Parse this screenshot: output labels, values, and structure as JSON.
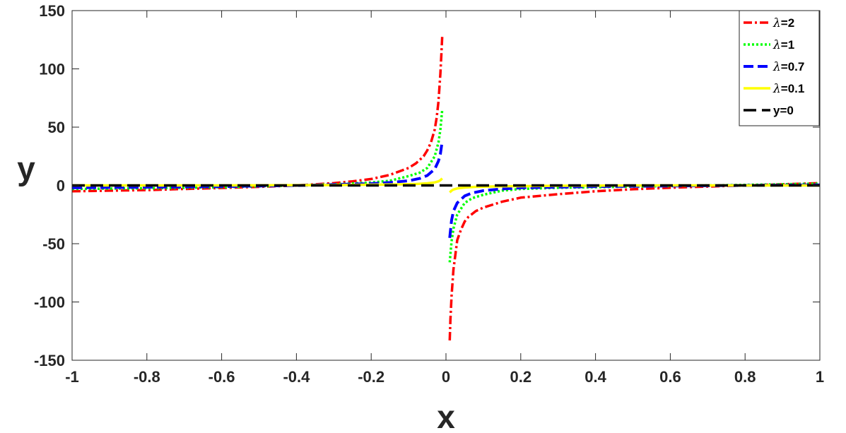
{
  "chart_data": {
    "type": "line",
    "xlabel": "x",
    "ylabel": "y",
    "xlim": [
      -1,
      1
    ],
    "ylim": [
      -150,
      150
    ],
    "x_ticks": [
      -1,
      -0.8,
      -0.6,
      -0.4,
      -0.2,
      0,
      0.2,
      0.4,
      0.6,
      0.8,
      1
    ],
    "x_tick_labels": [
      "-1",
      "-0.8",
      "-0.6",
      "-0.4",
      "-0.2",
      "0",
      "0.2",
      "0.4",
      "0.6",
      "0.8",
      "1"
    ],
    "y_ticks": [
      150,
      100,
      50,
      0,
      -50,
      -100,
      -150
    ],
    "y_tick_labels": [
      "150",
      "100",
      "50",
      "0",
      "-50",
      "-100",
      "-150"
    ],
    "grid": false,
    "legend_position": "top-right",
    "series": [
      {
        "name": "λ=2",
        "legend_symbol": "λ",
        "legend_rest": "=2",
        "color": "#ff0000",
        "dash": "dash-dot",
        "left": {
          "x": [
            -1,
            -0.9,
            -0.8,
            -0.7,
            -0.6,
            -0.5,
            -0.4,
            -0.35,
            -0.3,
            -0.25,
            -0.2,
            -0.15,
            -0.1,
            -0.08,
            -0.06,
            -0.05,
            -0.04,
            -0.03,
            -0.025,
            -0.02,
            -0.015,
            -0.012,
            -0.01
          ],
          "y": [
            -5,
            -4.5,
            -4,
            -3,
            -2.2,
            -1.2,
            0,
            1,
            2,
            3.5,
            5.5,
            9,
            15,
            19,
            25,
            30,
            37,
            48,
            58,
            72,
            96,
            115,
            128
          ]
        },
        "right": {
          "x": [
            0.01,
            0.012,
            0.015,
            0.02,
            0.025,
            0.03,
            0.04,
            0.05,
            0.06,
            0.08,
            0.1,
            0.15,
            0.2,
            0.3,
            0.4,
            0.5,
            0.6,
            0.7,
            0.8,
            0.9,
            1
          ],
          "y": [
            -133,
            -115,
            -95,
            -72,
            -60,
            -47,
            -38,
            -31,
            -27,
            -22,
            -19,
            -14,
            -10.5,
            -7.5,
            -5,
            -3.3,
            -2,
            -1,
            0,
            1,
            2
          ]
        }
      },
      {
        "name": "λ=1",
        "legend_symbol": "λ",
        "legend_rest": "=1",
        "color": "#00ff00",
        "dash": "dotted",
        "left": {
          "x": [
            -1,
            -0.8,
            -0.6,
            -0.4,
            -0.3,
            -0.2,
            -0.15,
            -0.1,
            -0.07,
            -0.05,
            -0.03,
            -0.02,
            -0.015,
            -0.01
          ],
          "y": [
            -3,
            -2.5,
            -1.5,
            0,
            1,
            2.5,
            4,
            8,
            11,
            15,
            25,
            37,
            48,
            65
          ]
        },
        "right": {
          "x": [
            0.01,
            0.015,
            0.02,
            0.03,
            0.05,
            0.07,
            0.1,
            0.15,
            0.2,
            0.3,
            0.4,
            0.6,
            0.8,
            1
          ],
          "y": [
            -66,
            -48,
            -37,
            -25,
            -15,
            -11,
            -8,
            -4.5,
            -3,
            -2,
            -1.5,
            -0.5,
            0.5,
            1.5
          ]
        }
      },
      {
        "name": "λ=0.7",
        "legend_symbol": "λ",
        "legend_rest": "=0.7",
        "color": "#0000ff",
        "dash": "dashed",
        "left": {
          "x": [
            -1,
            -0.8,
            -0.6,
            -0.4,
            -0.2,
            -0.15,
            -0.1,
            -0.07,
            -0.05,
            -0.03,
            -0.02,
            -0.015,
            -0.01
          ],
          "y": [
            -2,
            -1.5,
            -1,
            0,
            1.5,
            2.5,
            4,
            6,
            8.5,
            14,
            21,
            27,
            38
          ]
        },
        "right": {
          "x": [
            0.01,
            0.015,
            0.02,
            0.03,
            0.05,
            0.07,
            0.1,
            0.15,
            0.2,
            0.4,
            0.6,
            0.8,
            1
          ],
          "y": [
            -45,
            -30,
            -22,
            -15,
            -9,
            -6.5,
            -4.5,
            -3,
            -2,
            -1,
            -0.5,
            0,
            0.5
          ]
        }
      },
      {
        "name": "λ=0.1",
        "legend_symbol": "λ",
        "legend_rest": "=0.1",
        "color": "#ffff00",
        "dash": "solid",
        "left": {
          "x": [
            -1,
            -0.6,
            -0.3,
            -0.15,
            -0.08,
            -0.05,
            -0.03,
            -0.02,
            -0.015,
            -0.01
          ],
          "y": [
            0,
            0,
            0.3,
            0.7,
            1.2,
            1.8,
            2.6,
            3.5,
            4.5,
            6
          ]
        },
        "right": {
          "x": [
            0.01,
            0.015,
            0.02,
            0.03,
            0.05,
            0.08,
            0.15,
            0.3,
            0.6,
            1
          ],
          "y": [
            -6,
            -4.5,
            -3.5,
            -2.6,
            -1.8,
            -1.2,
            -0.7,
            -0.3,
            0,
            0
          ]
        }
      },
      {
        "name": "y=0",
        "legend_symbol": "",
        "legend_rest": "y=0",
        "color": "#000000",
        "dash": "long-dash",
        "left": {
          "x": [
            -1,
            1
          ],
          "y": [
            0,
            0
          ]
        },
        "right": {
          "x": [],
          "y": []
        }
      }
    ]
  }
}
